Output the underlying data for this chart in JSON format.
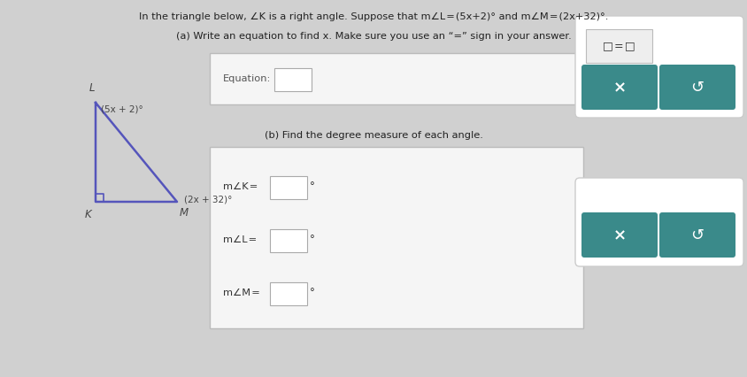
{
  "bg_color": "#d0d0d0",
  "title_text": "In the triangle below, ∠K is a right angle. Suppose that m∠L = (5x+2)° and m∠M = (2x+32)°.",
  "part_a_text": "(a) Write an equation to find x. Make sure you use an “=” sign in your answer.",
  "equation_label": "Equation:",
  "part_b_text": "(b) Find the degree measure of each angle.",
  "angle_labels": [
    "m∠K =",
    "m∠L =",
    "m∠M ="
  ],
  "box_eq_label": "□ = □",
  "triangle_color": "#5555bb",
  "label_L": "L",
  "label_K": "K",
  "label_M": "M",
  "angle_L_expr": "(5x + 2)°",
  "angle_M_expr": "(2x + 32)°",
  "white_panel_color": "#f0f0f0",
  "white_panel_edge": "#c0c0c0",
  "input_box_color": "#ffffff",
  "button_color": "#3a8a8a",
  "button_x_text": "×",
  "button_s_text": "↺",
  "eq_box_color": "#f5f5f5",
  "eq_box_edge": "#bbbbbb"
}
